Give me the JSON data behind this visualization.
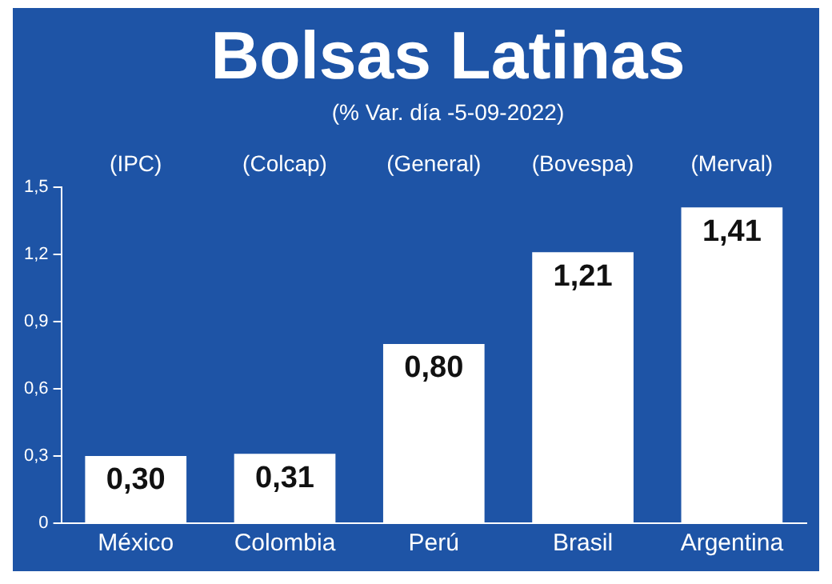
{
  "chart_data": {
    "type": "bar",
    "title": "Bolsas Latinas",
    "subtitle": "(% Var. día -5-09-2022)",
    "categories": [
      "México",
      "Colombia",
      "Perú",
      "Brasil",
      "Argentina"
    ],
    "values": [
      0.3,
      0.31,
      0.8,
      1.21,
      1.41
    ],
    "value_labels": [
      "0,30",
      "0,31",
      "0,80",
      "1,21",
      "1,41"
    ],
    "color": "#ffffff",
    "ylim": [
      0,
      1.5
    ],
    "yticks": [
      {
        "value": 0,
        "label": "0"
      },
      {
        "value": 0.3,
        "label": "0,3"
      },
      {
        "value": 0.6,
        "label": "0,6"
      },
      {
        "value": 0.9,
        "label": "0,9"
      },
      {
        "value": 1.2,
        "label": "1,2"
      },
      {
        "value": 1.5,
        "label": "1,5"
      }
    ],
    "grid": false,
    "legend": false,
    "annotations": [
      "(IPC)",
      "(Colcap)",
      "(General)",
      "(Bovespa)",
      "(Merval)"
    ]
  }
}
